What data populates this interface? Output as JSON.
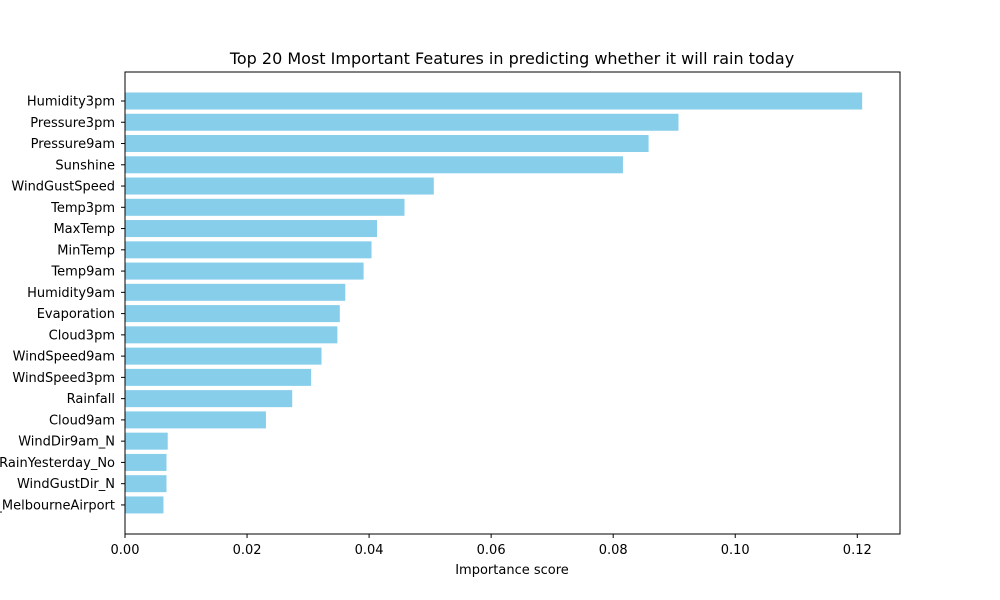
{
  "chart_data": {
    "type": "bar",
    "orientation": "horizontal",
    "title": "Top 20 Most Important Features in predicting whether it will rain today",
    "xlabel": "Importance score",
    "ylabel": "",
    "xlim": [
      0.0,
      0.127
    ],
    "x_ticks": [
      "0.00",
      "0.02",
      "0.04",
      "0.06",
      "0.08",
      "0.10",
      "0.12"
    ],
    "x_tick_values": [
      0.0,
      0.02,
      0.04,
      0.06,
      0.08,
      0.1,
      0.12
    ],
    "grid": false,
    "legend": "none",
    "bar_color": "#87ceeb",
    "categories": [
      "Humidity3pm",
      "Pressure3pm",
      "Pressure9am",
      "Sunshine",
      "WindGustSpeed",
      "Temp3pm",
      "MaxTemp",
      "MinTemp",
      "Temp9am",
      "Humidity9am",
      "Evaporation",
      "Cloud3pm",
      "WindSpeed9am",
      "WindSpeed3pm",
      "Rainfall",
      "Cloud9am",
      "WindDir9am_N",
      "RainYesterday_No",
      "WindGustDir_N",
      "Location_MelbourneAirport"
    ],
    "values": [
      0.1208,
      0.0907,
      0.0858,
      0.0816,
      0.0506,
      0.0458,
      0.0413,
      0.0404,
      0.0391,
      0.0361,
      0.0352,
      0.0348,
      0.0322,
      0.0305,
      0.0274,
      0.0231,
      0.007,
      0.0068,
      0.0068,
      0.0063
    ]
  }
}
